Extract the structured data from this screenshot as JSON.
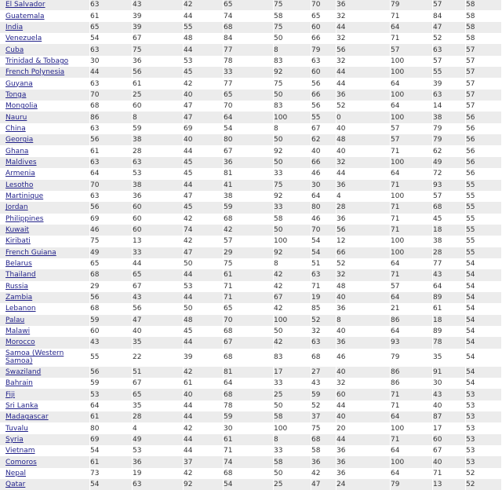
{
  "table": {
    "rows": [
      {
        "country": "El Salvador",
        "values": [
          "63",
          "43",
          "42",
          "65",
          "75",
          "70",
          "36",
          "79",
          "57",
          "58"
        ]
      },
      {
        "country": "Guatemala",
        "values": [
          "61",
          "39",
          "44",
          "74",
          "58",
          "65",
          "32",
          "71",
          "84",
          "58"
        ]
      },
      {
        "country": "India",
        "values": [
          "65",
          "39",
          "55",
          "68",
          "75",
          "60",
          "44",
          "64",
          "47",
          "58"
        ]
      },
      {
        "country": "Venezuela",
        "values": [
          "54",
          "67",
          "48",
          "84",
          "50",
          "66",
          "32",
          "71",
          "52",
          "58"
        ]
      },
      {
        "country": "Cuba",
        "values": [
          "63",
          "75",
          "44",
          "77",
          "8",
          "79",
          "56",
          "57",
          "63",
          "57"
        ]
      },
      {
        "country": "Trinidad & Tobago",
        "values": [
          "30",
          "36",
          "53",
          "78",
          "83",
          "63",
          "32",
          "100",
          "57",
          "57"
        ]
      },
      {
        "country": "French Polynesia",
        "values": [
          "44",
          "56",
          "45",
          "33",
          "92",
          "60",
          "44",
          "100",
          "55",
          "57"
        ]
      },
      {
        "country": "Guyana",
        "values": [
          "63",
          "61",
          "42",
          "77",
          "75",
          "56",
          "44",
          "64",
          "39",
          "57"
        ]
      },
      {
        "country": "Tonga",
        "values": [
          "70",
          "25",
          "40",
          "65",
          "50",
          "66",
          "36",
          "100",
          "63",
          "57"
        ]
      },
      {
        "country": "Mongolia",
        "values": [
          "68",
          "60",
          "47",
          "70",
          "83",
          "56",
          "52",
          "64",
          "14",
          "57"
        ]
      },
      {
        "country": "Nauru",
        "values": [
          "86",
          "8",
          "47",
          "64",
          "100",
          "55",
          "0",
          "100",
          "38",
          "56"
        ]
      },
      {
        "country": "China",
        "values": [
          "63",
          "59",
          "69",
          "54",
          "8",
          "67",
          "40",
          "57",
          "79",
          "56"
        ]
      },
      {
        "country": "Georgia",
        "values": [
          "56",
          "38",
          "40",
          "80",
          "50",
          "62",
          "48",
          "57",
          "79",
          "56"
        ]
      },
      {
        "country": "Ghana",
        "values": [
          "61",
          "28",
          "44",
          "67",
          "92",
          "40",
          "40",
          "71",
          "62",
          "56"
        ]
      },
      {
        "country": "Maldives",
        "values": [
          "63",
          "63",
          "45",
          "36",
          "50",
          "66",
          "32",
          "100",
          "49",
          "56"
        ]
      },
      {
        "country": "Armenia",
        "values": [
          "64",
          "53",
          "45",
          "81",
          "33",
          "46",
          "44",
          "64",
          "72",
          "56"
        ]
      },
      {
        "country": "Lesotho",
        "values": [
          "70",
          "38",
          "44",
          "41",
          "75",
          "30",
          "36",
          "71",
          "93",
          "55"
        ]
      },
      {
        "country": "Martinique",
        "values": [
          "63",
          "36",
          "47",
          "38",
          "92",
          "64",
          "4",
          "100",
          "57",
          "55"
        ]
      },
      {
        "country": "Jordan",
        "values": [
          "56",
          "60",
          "45",
          "59",
          "33",
          "80",
          "28",
          "71",
          "68",
          "55"
        ]
      },
      {
        "country": "Philippines",
        "values": [
          "69",
          "60",
          "42",
          "68",
          "58",
          "46",
          "36",
          "71",
          "45",
          "55"
        ]
      },
      {
        "country": "Kuwait",
        "values": [
          "46",
          "60",
          "74",
          "42",
          "50",
          "70",
          "56",
          "71",
          "18",
          "55"
        ]
      },
      {
        "country": "Kiribati",
        "values": [
          "75",
          "13",
          "42",
          "57",
          "100",
          "54",
          "12",
          "100",
          "38",
          "55"
        ]
      },
      {
        "country": "French Guiana",
        "values": [
          "49",
          "33",
          "47",
          "29",
          "92",
          "54",
          "66",
          "100",
          "28",
          "55"
        ]
      },
      {
        "country": "Belarus",
        "values": [
          "65",
          "44",
          "50",
          "75",
          "8",
          "51",
          "52",
          "64",
          "77",
          "54"
        ]
      },
      {
        "country": "Thailand",
        "values": [
          "68",
          "65",
          "44",
          "61",
          "42",
          "63",
          "32",
          "71",
          "43",
          "54"
        ]
      },
      {
        "country": "Russia",
        "values": [
          "29",
          "67",
          "53",
          "71",
          "42",
          "71",
          "48",
          "57",
          "64",
          "54"
        ]
      },
      {
        "country": "Zambia",
        "values": [
          "56",
          "43",
          "44",
          "71",
          "67",
          "19",
          "40",
          "64",
          "89",
          "54"
        ]
      },
      {
        "country": "Lebanon",
        "values": [
          "68",
          "56",
          "50",
          "65",
          "42",
          "85",
          "36",
          "21",
          "61",
          "54"
        ]
      },
      {
        "country": "Palau",
        "values": [
          "59",
          "47",
          "48",
          "70",
          "100",
          "52",
          "8",
          "86",
          "18",
          "54"
        ]
      },
      {
        "country": "Malawi",
        "values": [
          "60",
          "40",
          "45",
          "68",
          "50",
          "32",
          "40",
          "64",
          "89",
          "54"
        ]
      },
      {
        "country": "Morocco",
        "values": [
          "43",
          "35",
          "44",
          "67",
          "42",
          "63",
          "36",
          "93",
          "78",
          "54"
        ]
      },
      {
        "country": "Samoa (Western Samoa)",
        "values": [
          "55",
          "22",
          "39",
          "68",
          "83",
          "68",
          "46",
          "79",
          "35",
          "54"
        ]
      },
      {
        "country": "Swaziland",
        "values": [
          "56",
          "51",
          "42",
          "81",
          "17",
          "27",
          "40",
          "86",
          "91",
          "54"
        ]
      },
      {
        "country": "Bahrain",
        "values": [
          "59",
          "67",
          "61",
          "64",
          "33",
          "43",
          "32",
          "86",
          "30",
          "54"
        ]
      },
      {
        "country": "Fiji",
        "values": [
          "53",
          "65",
          "40",
          "68",
          "25",
          "59",
          "60",
          "71",
          "43",
          "53"
        ]
      },
      {
        "country": "Sri Lanka",
        "values": [
          "64",
          "35",
          "44",
          "78",
          "50",
          "52",
          "44",
          "71",
          "40",
          "53"
        ]
      },
      {
        "country": "Madagascar",
        "values": [
          "61",
          "28",
          "44",
          "59",
          "58",
          "37",
          "40",
          "64",
          "87",
          "53"
        ]
      },
      {
        "country": "Tuvalu",
        "values": [
          "80",
          "4",
          "42",
          "30",
          "100",
          "75",
          "20",
          "100",
          "17",
          "53"
        ]
      },
      {
        "country": "Syria",
        "values": [
          "69",
          "49",
          "44",
          "61",
          "8",
          "68",
          "44",
          "71",
          "60",
          "53"
        ]
      },
      {
        "country": "Vietnam",
        "values": [
          "54",
          "53",
          "44",
          "71",
          "33",
          "58",
          "36",
          "64",
          "67",
          "53"
        ]
      },
      {
        "country": "Comoros",
        "values": [
          "61",
          "36",
          "37",
          "74",
          "58",
          "36",
          "36",
          "100",
          "40",
          "53"
        ]
      },
      {
        "country": "Nepal",
        "values": [
          "73",
          "19",
          "42",
          "68",
          "50",
          "42",
          "36",
          "64",
          "71",
          "52"
        ]
      },
      {
        "country": "Qatar",
        "values": [
          "54",
          "63",
          "92",
          "54",
          "25",
          "47",
          "24",
          "79",
          "13",
          "52"
        ]
      }
    ]
  },
  "colors": {
    "link": "#22228a",
    "stripe": "#ececec",
    "text": "#333333"
  }
}
